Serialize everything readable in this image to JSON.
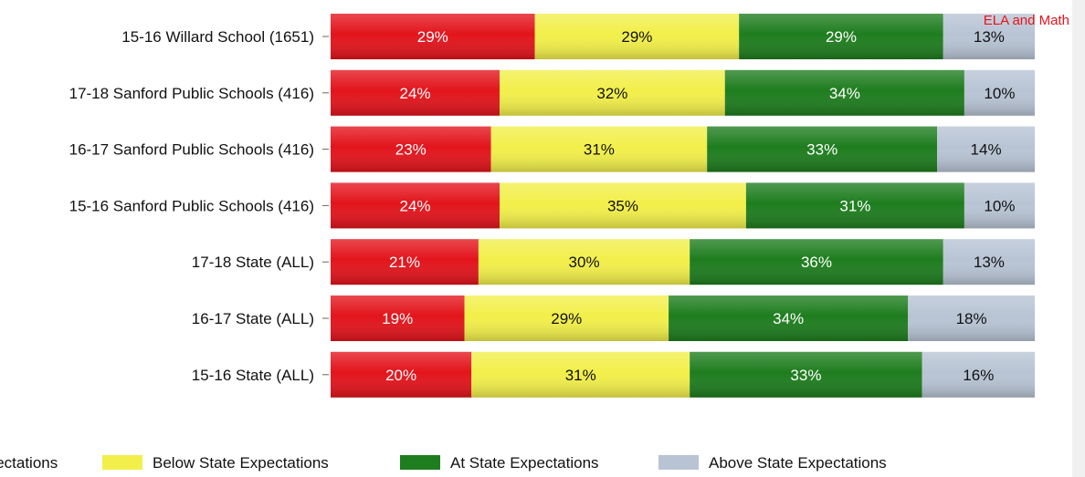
{
  "chart_data": {
    "type": "bar",
    "orientation": "horizontal",
    "stacked": true,
    "annotation": "ELA and Math",
    "categories": [
      "15-16 Willard School (1651)",
      "17-18 Sanford Public Schools (416)",
      "16-17 Sanford Public Schools (416)",
      "15-16 Sanford Public Schools (416)",
      "17-18 State (ALL)",
      "16-17 State (ALL)",
      "15-16 State (ALL)"
    ],
    "series": [
      {
        "name": "Well Below State Expectations",
        "color": "#e3141c",
        "text_color": "#ffffff",
        "values": [
          29,
          24,
          23,
          24,
          21,
          19,
          20
        ]
      },
      {
        "name": "Below State Expectations",
        "color": "#f2ef4a",
        "text_color": "#111111",
        "values": [
          29,
          32,
          31,
          35,
          30,
          29,
          31
        ]
      },
      {
        "name": "At State Expectations",
        "color": "#1e7d1e",
        "text_color": "#ffffff",
        "values": [
          29,
          34,
          33,
          31,
          36,
          34,
          33
        ]
      },
      {
        "name": "Above State Expectations",
        "color": "#b8c4d4",
        "text_color": "#111111",
        "values": [
          13,
          10,
          14,
          10,
          13,
          18,
          16
        ]
      }
    ],
    "value_suffix": "%",
    "xlim": [
      0,
      100
    ],
    "grid": false,
    "legend_position": "bottom"
  }
}
